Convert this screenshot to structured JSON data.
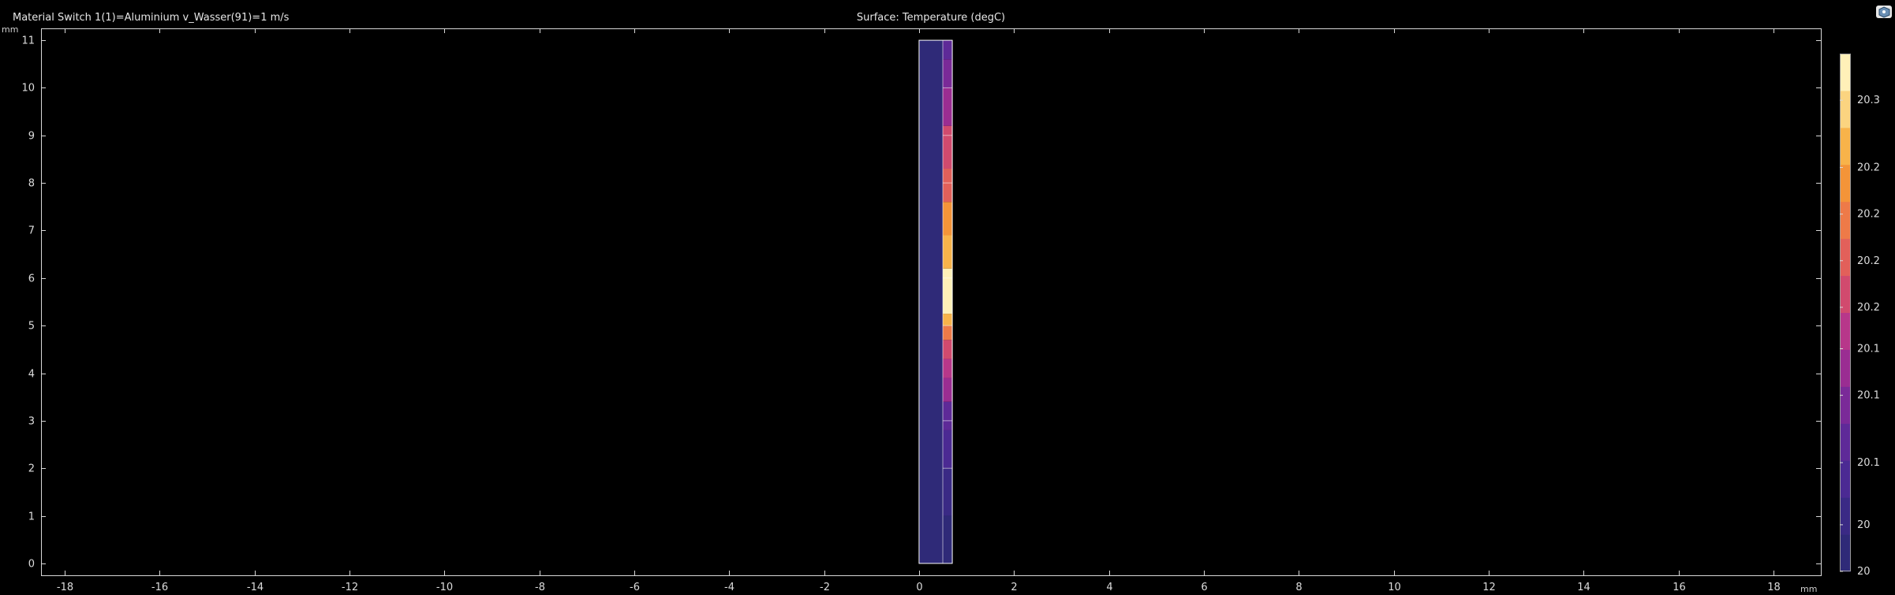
{
  "header": {
    "left_title": "Material Switch 1(1)=Aluminium v_Wasser(91)=1 m/s",
    "center_title": "Surface: Temperature (degC)"
  },
  "chart_data": {
    "type": "heatmap",
    "title": "Surface: Temperature (degC)",
    "xlabel": "mm",
    "ylabel": "mm",
    "xlim": [
      -18.5,
      19
    ],
    "ylim": [
      -0.25,
      11.25
    ],
    "xticks": [
      -18,
      -16,
      -14,
      -12,
      -10,
      -8,
      -6,
      -4,
      -2,
      0,
      2,
      4,
      6,
      8,
      10,
      12,
      14,
      16,
      18
    ],
    "yticks": [
      0,
      1,
      2,
      3,
      4,
      5,
      6,
      7,
      8,
      9,
      10,
      11
    ],
    "geometry": {
      "outer": {
        "x": [
          0,
          0.7
        ],
        "y": [
          0,
          11
        ]
      },
      "inner_divider_x": 0.5,
      "segment_boundaries_y": [
        2,
        3,
        5,
        6,
        8,
        9,
        10
      ]
    },
    "regions": [
      {
        "name": "left-strip",
        "x": [
          0,
          0.5
        ],
        "y": [
          0,
          11
        ],
        "value": 20.02
      },
      {
        "name": "right-strip",
        "x": [
          0.5,
          0.7
        ],
        "y_bands": [
          {
            "y": [
              0,
              1.0
            ],
            "value": 20.03
          },
          {
            "y": [
              1.0,
              2.0
            ],
            "value": 20.05
          },
          {
            "y": [
              2.0,
              2.8
            ],
            "value": 20.08
          },
          {
            "y": [
              2.8,
              3.4
            ],
            "value": 20.11
          },
          {
            "y": [
              3.4,
              3.9
            ],
            "value": 20.14
          },
          {
            "y": [
              3.9,
              4.3
            ],
            "value": 20.17
          },
          {
            "y": [
              4.3,
              4.7
            ],
            "value": 20.2
          },
          {
            "y": [
              4.7,
              5.0
            ],
            "value": 20.24
          },
          {
            "y": [
              5.0,
              5.25
            ],
            "value": 20.28
          },
          {
            "y": [
              5.25,
              6.2
            ],
            "value": 20.34
          },
          {
            "y": [
              6.2,
              6.9
            ],
            "value": 20.29
          },
          {
            "y": [
              6.9,
              7.6
            ],
            "value": 20.25
          },
          {
            "y": [
              7.6,
              8.3
            ],
            "value": 20.21
          },
          {
            "y": [
              8.3,
              9.2
            ],
            "value": 20.18
          },
          {
            "y": [
              9.2,
              10.0
            ],
            "value": 20.15
          },
          {
            "y": [
              10.0,
              10.6
            ],
            "value": 20.12
          },
          {
            "y": [
              10.6,
              11.0
            ],
            "value": 20.09
          }
        ]
      }
    ],
    "colorbar": {
      "colors": [
        "#2f2a78",
        "#3a2a85",
        "#4b2a93",
        "#5e2a98",
        "#7a2a98",
        "#9a2d92",
        "#b7378a",
        "#d14a6e",
        "#e2605a",
        "#ee7a48",
        "#f49438",
        "#f8b34a",
        "#fbd480",
        "#fff0b8"
      ],
      "tick_labels": [
        "20",
        "20",
        "20.1",
        "20.1",
        "20.1",
        "20.2",
        "20.2",
        "20.2",
        "20.2",
        "20.3"
      ],
      "tick_levels": [
        0.0,
        0.09,
        0.21,
        0.34,
        0.43,
        0.51,
        0.6,
        0.69,
        0.78,
        0.91
      ]
    }
  }
}
